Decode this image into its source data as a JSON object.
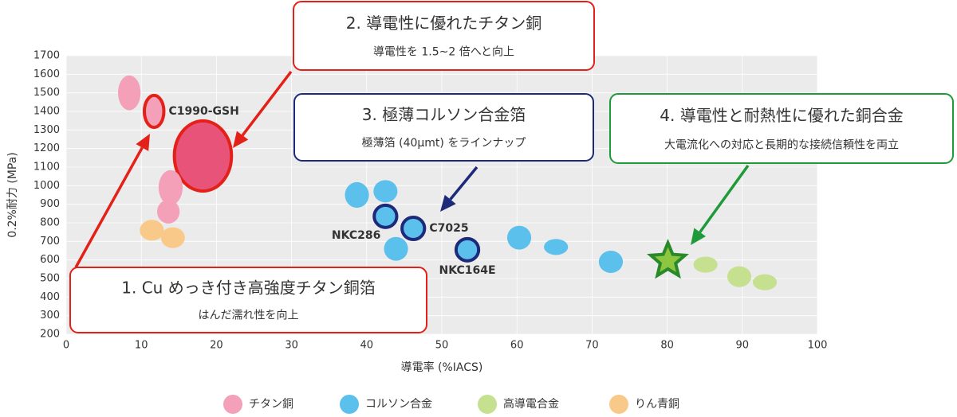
{
  "chart_data": {
    "type": "bubble-scatter",
    "x_label": "導電率 (%IACS)",
    "y_label": "0.2%耐力 (MPa)",
    "xlim": [
      0,
      100
    ],
    "xticks": [
      0,
      10,
      20,
      30,
      40,
      50,
      60,
      70,
      80,
      90,
      100
    ],
    "ylim": [
      200,
      1700
    ],
    "yticks": [
      200,
      300,
      400,
      500,
      600,
      700,
      800,
      900,
      1000,
      1100,
      1200,
      1300,
      1400,
      1500,
      1600,
      1700
    ],
    "grid": true,
    "series": [
      {
        "name": "チタン銅",
        "color": "#f4a0b8",
        "x": [
          8.4,
          11.7,
          18.2,
          13.9,
          13.6
        ],
        "values": [
          1500,
          1400,
          1160,
          990,
          860
        ],
        "x_spread": [
          1.5,
          1.3,
          3.8,
          1.6,
          1.5
        ],
        "y_spread": [
          94,
          86,
          189,
          94,
          64
        ],
        "point_colors": [
          null,
          null,
          "#e8537a",
          null,
          null
        ],
        "edge_colors": [
          null,
          "#e32119",
          "#e32119",
          null,
          null
        ],
        "markers": [
          "ellipse",
          "ellipse",
          "ellipse",
          "ellipse",
          "ellipse"
        ],
        "labels": [
          null,
          "C1990-GSH",
          null,
          null,
          null
        ]
      },
      {
        "name": "コルソン合金",
        "color": "#5bc0eb",
        "x": [
          38.7,
          42.5,
          42.5,
          46.2,
          43.9,
          53.4,
          60.3,
          65.2,
          72.5
        ],
        "values": [
          950,
          970,
          835,
          770,
          660,
          655,
          720,
          670,
          590
        ],
        "x_spread": [
          1.6,
          1.6,
          1.5,
          1.5,
          1.6,
          1.5,
          1.6,
          1.6,
          1.6
        ],
        "y_spread": [
          69,
          60,
          60,
          60,
          64,
          60,
          64,
          43,
          60
        ],
        "point_colors": [
          null,
          null,
          null,
          null,
          null,
          null,
          null,
          null,
          null
        ],
        "edge_colors": [
          null,
          null,
          "#1d2a7a",
          "#1d2a7a",
          null,
          "#1d2a7a",
          null,
          null,
          null
        ],
        "markers": [
          "ellipse",
          "ellipse",
          "ellipse",
          "ellipse",
          "ellipse",
          "ellipse",
          "ellipse",
          "ellipse",
          "ellipse"
        ],
        "labels": [
          null,
          null,
          "NKC286",
          "C7025",
          null,
          "NKC164E",
          null,
          null,
          null
        ]
      },
      {
        "name": "高導電合金",
        "color": "#c5e08f",
        "x": [
          80.1,
          85.1,
          89.6,
          93
        ],
        "values": [
          595,
          575,
          510,
          480
        ],
        "x_spread": [
          2.4,
          1.6,
          1.6,
          1.6
        ],
        "y_spread": [
          94,
          43,
          56,
          43
        ],
        "point_colors": [
          "#8dc63f",
          null,
          null,
          null
        ],
        "edge_colors": [
          "#2a8a2a",
          null,
          null,
          null
        ],
        "markers": [
          "star",
          "ellipse",
          "ellipse",
          "ellipse"
        ],
        "labels": [
          null,
          null,
          null,
          null
        ]
      },
      {
        "name": "りん青銅",
        "color": "#f9c98a",
        "x": [
          11.4,
          14.2
        ],
        "values": [
          760,
          720
        ],
        "x_spread": [
          1.6,
          1.6
        ],
        "y_spread": [
          56,
          56
        ],
        "point_colors": [
          null,
          null
        ],
        "edge_colors": [
          null,
          null
        ],
        "markers": [
          "ellipse",
          "ellipse"
        ],
        "labels": [
          null,
          null
        ]
      }
    ],
    "annotations": [
      {
        "title": "1.  Cu めっき付き高強度チタン銅箔",
        "text": "はんだ濡れ性を向上",
        "color": "#e32119"
      },
      {
        "title": "2.  導電性に優れたチタン銅",
        "text": "導電性を 1.5~2 倍へと向上",
        "color": "#e32119"
      },
      {
        "title": "3.  極薄コルソン合金箔",
        "text": "極薄箔 (40μmt) をラインナップ",
        "color": "#1d2a7a"
      },
      {
        "title": "4.  導電性と耐熱性に優れた銅合金",
        "text": "大電流化への対応と長期的な接続信頼性を両立",
        "color": "#1f9a3a"
      }
    ]
  }
}
